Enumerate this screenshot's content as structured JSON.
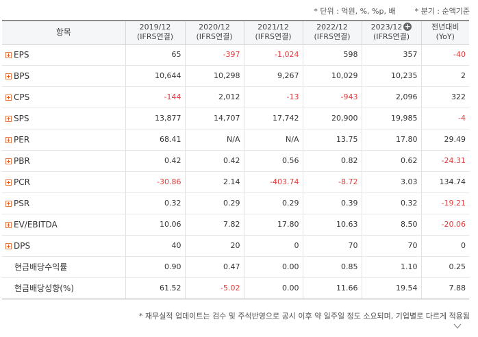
{
  "notes": {
    "unit": "* 단위 : 억원, %, %p, 배",
    "quarter": "* 분기 : 순액기준",
    "footer": "* 재무실적 업데이트는 검수 및 주석반영으로 공시 이후 약 일주일 정도 소요되며, 기업별로 다르게 적용됨"
  },
  "table": {
    "header": {
      "item": "항목",
      "columns": [
        {
          "period": "2019/12",
          "basis": "(IFRS연결)"
        },
        {
          "period": "2020/12",
          "basis": "(IFRS연결)"
        },
        {
          "period": "2021/12",
          "basis": "(IFRS연결)"
        },
        {
          "period": "2022/12",
          "basis": "(IFRS연결)"
        },
        {
          "period": "2023/12",
          "basis": "(IFRS연결)"
        },
        {
          "period": "전년대비",
          "basis": "(YoY)"
        }
      ],
      "expand_icon": "plus-circle-icon"
    },
    "rows": [
      {
        "label": "EPS",
        "expandable": true,
        "values": [
          "65",
          "-397",
          "-1,024",
          "598",
          "357",
          "-40"
        ]
      },
      {
        "label": "BPS",
        "expandable": true,
        "values": [
          "10,644",
          "10,298",
          "9,267",
          "10,029",
          "10,235",
          "2"
        ]
      },
      {
        "label": "CPS",
        "expandable": true,
        "values": [
          "-144",
          "2,012",
          "-13",
          "-943",
          "2,096",
          "322"
        ]
      },
      {
        "label": "SPS",
        "expandable": true,
        "values": [
          "13,877",
          "14,707",
          "17,742",
          "20,900",
          "19,985",
          "-4"
        ]
      },
      {
        "label": "PER",
        "expandable": true,
        "values": [
          "68.41",
          "N/A",
          "N/A",
          "13.75",
          "17.80",
          "29.49"
        ]
      },
      {
        "label": "PBR",
        "expandable": true,
        "values": [
          "0.42",
          "0.42",
          "0.56",
          "0.82",
          "0.62",
          "-24.31"
        ]
      },
      {
        "label": "PCR",
        "expandable": true,
        "values": [
          "-30.86",
          "2.14",
          "-403.74",
          "-8.72",
          "3.03",
          "134.74"
        ]
      },
      {
        "label": "PSR",
        "expandable": true,
        "values": [
          "0.32",
          "0.29",
          "0.29",
          "0.39",
          "0.32",
          "-19.21"
        ]
      },
      {
        "label": "EV/EBITDA",
        "expandable": true,
        "values": [
          "10.06",
          "7.82",
          "17.80",
          "10.63",
          "8.50",
          "-20.06"
        ]
      },
      {
        "label": "DPS",
        "expandable": true,
        "values": [
          "40",
          "20",
          "0",
          "70",
          "70",
          "0"
        ]
      },
      {
        "label": "현금배당수익률",
        "expandable": false,
        "values": [
          "0.90",
          "0.47",
          "0.00",
          "0.85",
          "1.10",
          "0.25"
        ]
      },
      {
        "label": "현금배당성향(%)",
        "expandable": false,
        "values": [
          "61.52",
          "-5.02",
          "0.00",
          "11.66",
          "19.54",
          "7.88"
        ]
      }
    ]
  },
  "colors": {
    "negative": "#e03a3a",
    "expand_icon": "#e0602a"
  },
  "scroll_icon": "chevron-down-icon"
}
